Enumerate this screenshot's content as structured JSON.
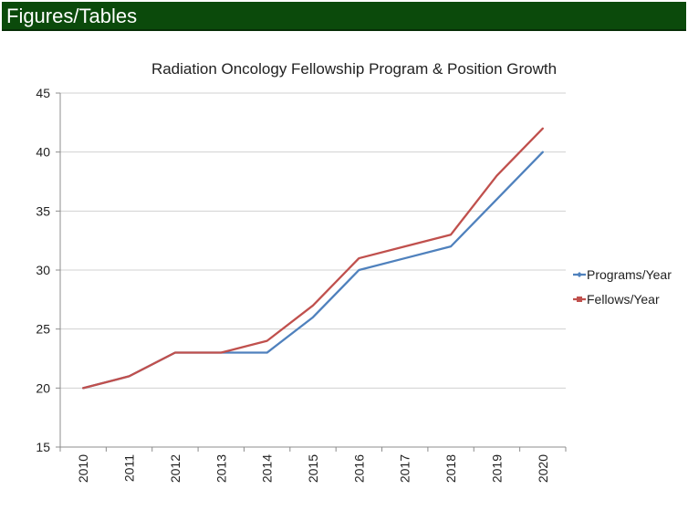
{
  "header": {
    "title": "Figures/Tables",
    "background_color": "#0b4a0b",
    "text_color": "#ffffff"
  },
  "chart_data": {
    "type": "line",
    "title": "Radiation Oncology Fellowship Program & Position Growth",
    "xlabel": "",
    "ylabel": "",
    "categories": [
      "2010",
      "2011",
      "2012",
      "2013",
      "2014",
      "2015",
      "2016",
      "2017",
      "2018",
      "2019",
      "2020"
    ],
    "ylim": [
      15,
      45
    ],
    "yticks": [
      15,
      20,
      25,
      30,
      35,
      40,
      45
    ],
    "grid": true,
    "legend_position": "right",
    "series": [
      {
        "name": "Programs/Year",
        "color": "#4f81bd",
        "values": [
          20,
          21,
          23,
          23,
          23,
          26,
          30,
          31,
          32,
          36,
          40
        ]
      },
      {
        "name": "Fellows/Year",
        "color": "#c0504d",
        "values": [
          20,
          21,
          23,
          23,
          24,
          27,
          31,
          32,
          33,
          38,
          42
        ]
      }
    ]
  }
}
